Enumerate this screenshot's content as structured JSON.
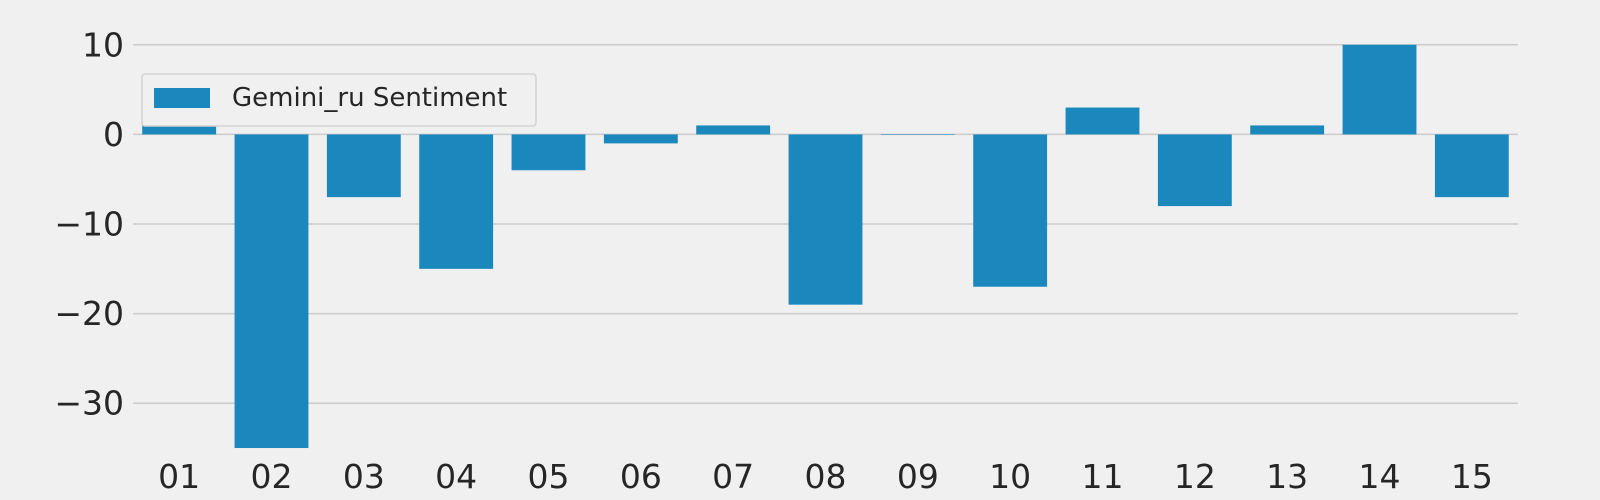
{
  "chart_data": {
    "type": "bar",
    "title": "",
    "xlabel": "",
    "ylabel": "",
    "categories": [
      "01",
      "02",
      "03",
      "04",
      "05",
      "06",
      "07",
      "08",
      "09",
      "10",
      "11",
      "12",
      "13",
      "14",
      "15"
    ],
    "series": [
      {
        "name": "Gemini_ru Sentiment",
        "values": [
          1,
          -35,
          -7,
          -15,
          -4,
          -1,
          1,
          -19,
          0,
          -17,
          3,
          -8,
          1,
          10,
          -7
        ],
        "color": "#1b88bd"
      }
    ],
    "ylim": [
      -36,
      15
    ],
    "yticks": [
      10,
      0,
      -10,
      -20,
      -30
    ],
    "ytick_labels": [
      "10",
      "0",
      "−10",
      "−20",
      "−30"
    ],
    "grid": "horizontal",
    "legend_position": "upper-left",
    "background": "#f0f0f0"
  }
}
